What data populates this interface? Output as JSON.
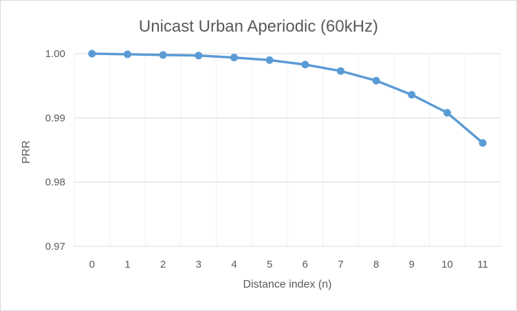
{
  "chart_data": {
    "type": "line",
    "title": "Unicast Urban Aperiodic (60kHz)",
    "xlabel": "Distance index (n)",
    "ylabel": "PRR",
    "x": [
      0,
      1,
      2,
      3,
      4,
      5,
      6,
      7,
      8,
      9,
      10,
      11
    ],
    "x_tick_labels": [
      "0",
      "1",
      "2",
      "3",
      "4",
      "5",
      "6",
      "7",
      "8",
      "9",
      "10",
      "11"
    ],
    "y_tick_labels": [
      "1.00",
      "0.99",
      "0.98",
      "0.97"
    ],
    "y_ticks": [
      1.0,
      0.99,
      0.98,
      0.97
    ],
    "ylim": [
      0.97,
      1.0
    ],
    "grid": true,
    "legend": "none",
    "series": [
      {
        "color": "#5b9bd5",
        "values": [
          1.0,
          0.9999,
          0.9998,
          0.9997,
          0.9994,
          0.999,
          0.9983,
          0.9973,
          0.9958,
          0.9936,
          0.9908,
          0.9861
        ]
      }
    ]
  }
}
